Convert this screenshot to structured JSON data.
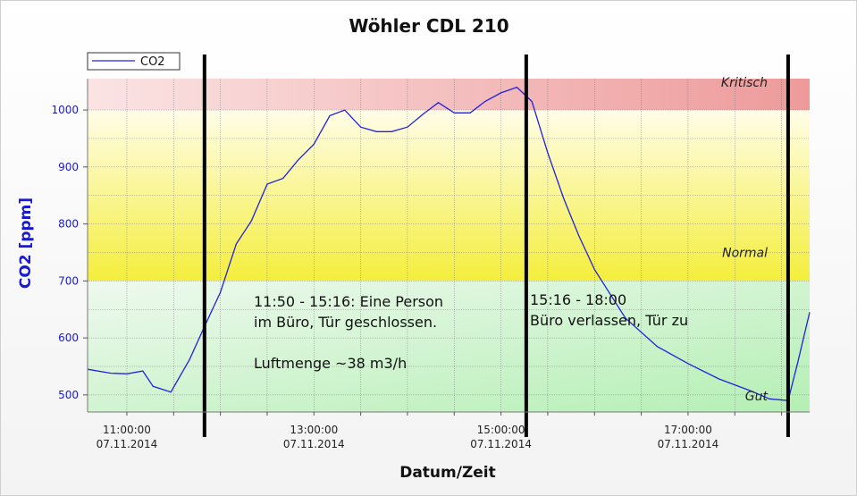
{
  "chart_data": {
    "type": "line",
    "title": "Wöhler CDL 210",
    "xlabel": "Datum/Zeit",
    "ylabel": "CO2 [ppm]",
    "xlim_hours": [
      10.58,
      18.3
    ],
    "ylim": [
      470,
      1055
    ],
    "yticks": [
      500,
      600,
      700,
      800,
      900,
      1000
    ],
    "xticks": [
      {
        "hour": 11,
        "time": "11:00:00",
        "date": "07.11.2014"
      },
      {
        "hour": 13,
        "time": "13:00:00",
        "date": "07.11.2014"
      },
      {
        "hour": 15,
        "time": "15:00:00",
        "date": "07.11.2014"
      },
      {
        "hour": 17,
        "time": "17:00:00",
        "date": "07.11.2014"
      }
    ],
    "grid": true,
    "legend": {
      "position": "top-left",
      "entries": [
        "CO2"
      ]
    },
    "colors": {
      "series": "#2222dd",
      "zone_critical": "#f0a0a0",
      "zone_normal": "#f5f060",
      "zone_good": "#b8f0b8",
      "markers": "#000000"
    },
    "zones": [
      {
        "label": "Kritisch",
        "from": 1000,
        "to": 1055
      },
      {
        "label": "Normal",
        "from": 700,
        "to": 1000
      },
      {
        "label": "Gut",
        "from": 470,
        "to": 700
      }
    ],
    "markers_hours": [
      11.83,
      15.27,
      18.07
    ],
    "series": [
      {
        "name": "CO2",
        "x_hours": [
          10.58,
          10.83,
          11.0,
          11.17,
          11.28,
          11.47,
          11.67,
          11.83,
          12.0,
          12.17,
          12.33,
          12.5,
          12.67,
          12.83,
          13.0,
          13.17,
          13.33,
          13.5,
          13.67,
          13.83,
          14.0,
          14.17,
          14.33,
          14.5,
          14.67,
          14.83,
          15.0,
          15.17,
          15.33,
          15.5,
          15.67,
          15.83,
          16.0,
          16.33,
          16.67,
          17.0,
          17.33,
          17.67,
          17.87,
          18.07,
          18.17,
          18.3
        ],
        "values": [
          545,
          538,
          537,
          542,
          515,
          505,
          562,
          620,
          680,
          765,
          805,
          870,
          880,
          912,
          940,
          990,
          1000,
          970,
          962,
          962,
          970,
          993,
          1013,
          995,
          995,
          1015,
          1030,
          1040,
          1015,
          925,
          845,
          780,
          720,
          635,
          585,
          555,
          528,
          507,
          493,
          490,
          555,
          645
        ]
      }
    ],
    "annotations": [
      {
        "lines": [
          "11:50 - 15:16: Eine Person",
          "im Büro, Tür geschlossen.",
          "",
          "Luftmenge ~38 m3/h"
        ]
      },
      {
        "lines": [
          "15:16 - 18:00",
          "Büro verlassen, Tür zu"
        ]
      }
    ]
  }
}
